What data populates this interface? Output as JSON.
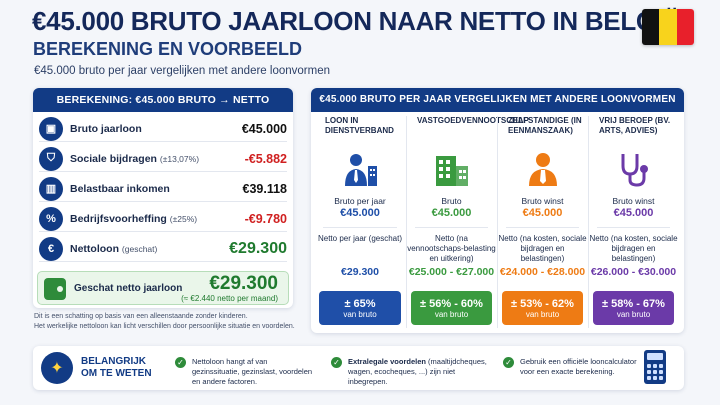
{
  "header": {
    "title": "€45.000 BRUTO JAARLOON NAAR NETTO IN BELGIË:",
    "subtitle_caps": "BEREKENING EN VOORBEELD",
    "subtitle": "€45.000 bruto per jaar vergelijken met andere loonvormen",
    "flag_colors": [
      "#111111",
      "#f8d31c",
      "#e8202b"
    ]
  },
  "calc": {
    "header": "BEREKENING: €45.000 BRUTO → NETTO",
    "rows": [
      {
        "icon": "briefcase-icon",
        "glyph": "▣",
        "label": "Bruto jaarloon",
        "note": "",
        "value": "€45.000",
        "kind": "pos"
      },
      {
        "icon": "shield-icon",
        "glyph": "⛉",
        "label": "Sociale bijdragen",
        "note": "(±13,07%)",
        "value": "-€5.882",
        "kind": "neg"
      },
      {
        "icon": "building-icon",
        "glyph": "▥",
        "label": "Belastbaar inkomen",
        "note": "",
        "value": "€39.118",
        "kind": "pos"
      },
      {
        "icon": "percent-icon",
        "glyph": "%",
        "label": "Bedrijfsvoorheffing",
        "note": "(±25%)",
        "value": "-€9.780",
        "kind": "neg"
      },
      {
        "icon": "euro-coin-icon",
        "glyph": "€",
        "label": "Nettoloon",
        "note": "(geschat)",
        "value": "€29.300",
        "kind": "big"
      }
    ],
    "net": {
      "label": "Geschat netto jaarloon",
      "value": "€29.300",
      "sub": "(≈ €2.440 netto per maand)"
    },
    "notes": [
      "Dit is een schatting op basis van een alleenstaande zonder kinderen.",
      "Het werkelijke nettoloon kan licht verschillen door persoonlijke situatie en voordelen."
    ]
  },
  "compare": {
    "header": "€45.000 BRUTO PER JAAR VERGELIJKEN MET ANDERE LOONVORMEN",
    "columns": [
      {
        "title": "LOON IN DIENSTVERBAND",
        "color": "#1f4fa8",
        "icon": "employee-icon",
        "gross_label": "Bruto per jaar",
        "gross_value": "€45.000",
        "net_label": "Netto per jaar (geschat)",
        "net_value": "€29.300",
        "pct": "± 65%",
        "pct_sub": "van bruto"
      },
      {
        "title": "VASTGOEDVENNOOTSCHAP",
        "color": "#3a9a3f",
        "icon": "building-icon",
        "gross_label": "Bruto",
        "gross_value": "€45.000",
        "net_label": "Netto (na vennootschaps-belasting en uitkering)",
        "net_value": "€25.000 - €27.000",
        "pct": "± 56% - 60%",
        "pct_sub": "van bruto"
      },
      {
        "title": "ZELFSTANDIGE (IN EENMANSZAAK)",
        "color": "#ee7b14",
        "icon": "self-employed-icon",
        "gross_label": "Bruto winst",
        "gross_value": "€45.000",
        "net_label": "Netto (na kosten, sociale bijdragen en belastingen)",
        "net_value": "€24.000 - €28.000",
        "pct": "± 53% - 62%",
        "pct_sub": "van bruto"
      },
      {
        "title": "VRIJ BEROEP (BV. ARTS, ADVIES)",
        "color": "#6b3aa8",
        "icon": "stethoscope-icon",
        "gross_label": "Bruto winst",
        "gross_value": "€45.000",
        "net_label": "Netto (na kosten, sociale bijdragen en belastingen)",
        "net_value": "€26.000 - €30.000",
        "pct": "± 58% - 67%",
        "pct_sub": "van bruto"
      }
    ]
  },
  "tips": {
    "heading_1": "BELANGRIJK",
    "heading_2": "OM TE WETEN",
    "items": [
      {
        "bold": "",
        "text": "Nettoloon hangt af van gezinssituatie, gezinslast, voordelen en andere factoren."
      },
      {
        "bold": "Extralegale voordelen",
        "text": " (maaltijdcheques, wagen, ecocheques, ...) zijn niet inbegrepen."
      },
      {
        "bold": "",
        "text": "Gebruik een officiële looncalculator voor een exacte berekening."
      }
    ]
  }
}
